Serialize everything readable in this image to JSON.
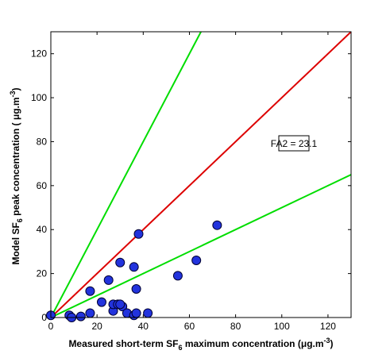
{
  "chart_data": {
    "type": "scatter",
    "xlabel": [
      "Measured short-term SF",
      "6",
      " maximum concentration (μg.m",
      "-3",
      ")"
    ],
    "ylabel": [
      "Model SF",
      "6",
      " peak concentration (  μg.m",
      "-3",
      ")"
    ],
    "annotation": "FA2 = 23.1",
    "xlim": [
      0,
      130
    ],
    "ylim": [
      0,
      130
    ],
    "xticks": [
      0,
      20,
      40,
      60,
      80,
      100,
      120
    ],
    "yticks": [
      0,
      20,
      40,
      60,
      80,
      100,
      120
    ],
    "lines": [
      {
        "color": "#00dd00",
        "x": [
          0,
          65
        ],
        "y": [
          0,
          130
        ]
      },
      {
        "color": "#dd0000",
        "x": [
          0,
          130
        ],
        "y": [
          0,
          130
        ]
      },
      {
        "color": "#00dd00",
        "x": [
          0,
          130
        ],
        "y": [
          0,
          65
        ]
      }
    ],
    "series": [
      {
        "color": "#2233dd",
        "x": [
          0,
          8,
          9,
          13,
          17,
          17,
          22,
          25,
          27,
          27,
          29,
          30,
          31,
          30,
          33,
          36,
          36,
          37,
          37,
          38,
          42,
          55,
          63,
          72
        ],
        "y": [
          1,
          1,
          0,
          0.5,
          12,
          2,
          7,
          17,
          3,
          6,
          6,
          25,
          5,
          6,
          2,
          1,
          23,
          13,
          2,
          38,
          2,
          19,
          26,
          42
        ]
      }
    ]
  }
}
